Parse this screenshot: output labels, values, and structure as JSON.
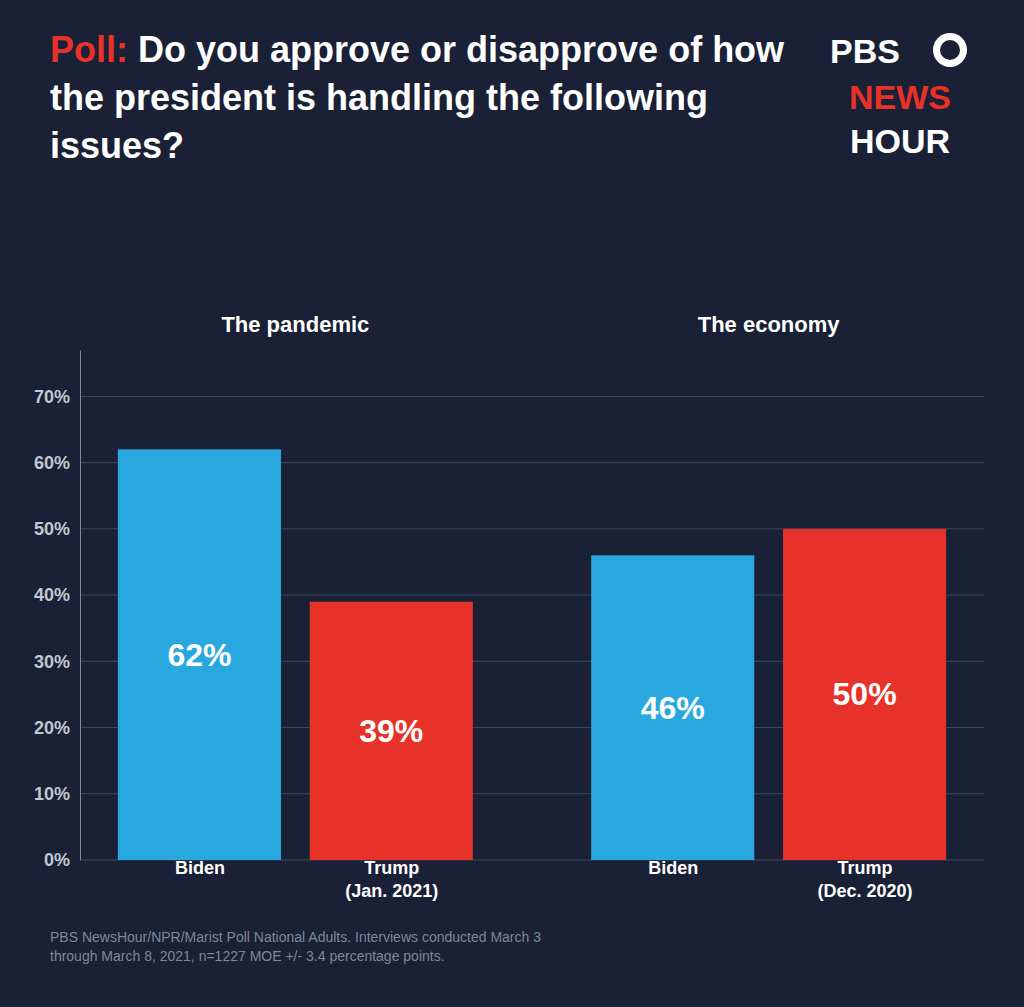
{
  "chart_data": {
    "type": "bar",
    "title": "Poll: Do you approve or disapprove of how the president is handling the following issues?",
    "categories": [
      "Biden",
      "Trump\n(Jan. 2021)",
      "Biden",
      "Trump\n(Dec. 2020)"
    ],
    "values": [
      62,
      39,
      46,
      50
    ],
    "value_labels": [
      "62%",
      "39%",
      "46%",
      "50%"
    ],
    "data_labels": true,
    "colors": [
      "#29a8e0",
      "#e63229",
      "#29a8e0",
      "#e63229"
    ],
    "ylim": [
      0,
      77
    ],
    "yticks": [
      {
        "value": 0,
        "label": "0%"
      },
      {
        "value": 10,
        "label": "10%"
      },
      {
        "value": 20,
        "label": "20%"
      },
      {
        "value": 30,
        "label": "30%"
      },
      {
        "value": 40,
        "label": "40%"
      },
      {
        "value": 50,
        "label": "50%"
      },
      {
        "value": 60,
        "label": "60%"
      },
      {
        "value": 70,
        "label": "70%"
      }
    ],
    "grid": true,
    "annotations": [
      "The pandemic",
      "The economy"
    ],
    "logo": [
      "PBS",
      "NEWS",
      "HOUR"
    ],
    "footnote": "PBS NewsHour/NPR/Marist Poll National Adults. Interviews conducted March 3\nthrough March 8, 2021, n=1227 MOE +/- 3.4 percentage points."
  }
}
